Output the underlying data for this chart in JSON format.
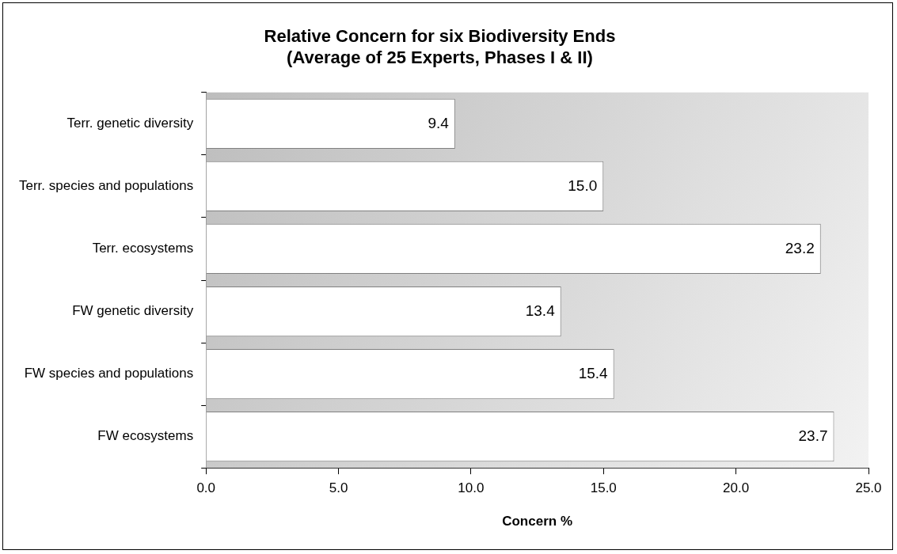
{
  "chart_data": {
    "type": "bar",
    "orientation": "horizontal",
    "title": "Relative Concern for six Biodiversity Ends",
    "subtitle": "(Average of 25 Experts, Phases I & II)",
    "xlabel": "Concern %",
    "categories": [
      "Terr. genetic diversity",
      "Terr. species and populations",
      "Terr. ecosystems",
      "FW genetic diversity",
      "FW species and populations",
      "FW ecosystems"
    ],
    "values": [
      9.4,
      15.0,
      23.2,
      13.4,
      15.4,
      23.7
    ],
    "value_labels": [
      "9.4",
      "15.0",
      "23.2",
      "13.4",
      "15.4",
      "23.7"
    ],
    "color": "#ffffff",
    "xlim": [
      0,
      25
    ],
    "xticks": [
      {
        "value": 0,
        "label": "0.0"
      },
      {
        "value": 5,
        "label": "5.0"
      },
      {
        "value": 10,
        "label": "10.0"
      },
      {
        "value": 15,
        "label": "15.0"
      },
      {
        "value": 20,
        "label": "20.0"
      },
      {
        "value": 25,
        "label": "25.0"
      }
    ],
    "grid": false,
    "legend": false
  }
}
